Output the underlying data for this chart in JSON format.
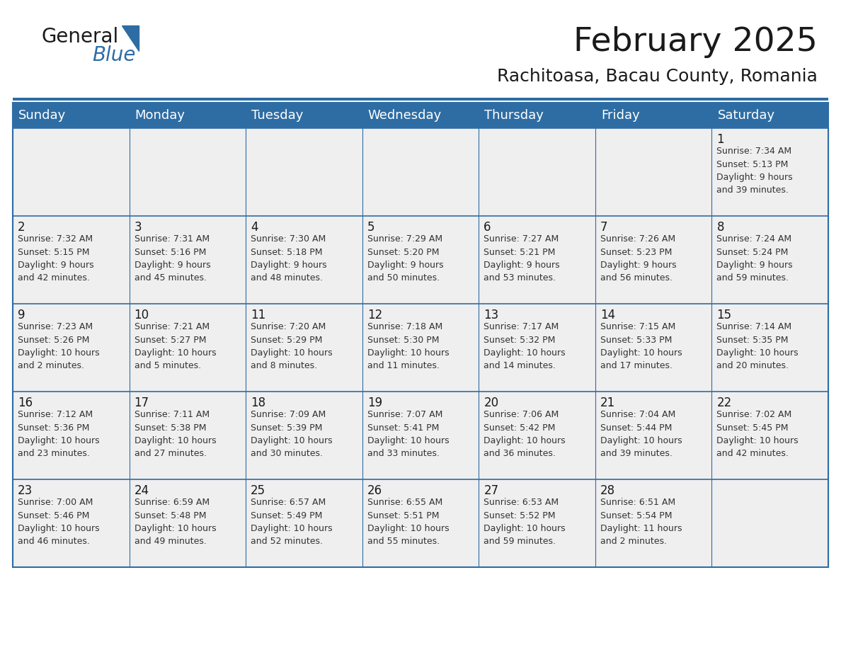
{
  "title": "February 2025",
  "subtitle": "Rachitoasa, Bacau County, Romania",
  "header_bg": "#2E6DA4",
  "header_text_color": "#FFFFFF",
  "cell_bg": "#EFEFEF",
  "border_color": "#2E6DA4",
  "text_color": "#1a1a1a",
  "cell_text_color": "#333333",
  "day_headers": [
    "Sunday",
    "Monday",
    "Tuesday",
    "Wednesday",
    "Thursday",
    "Friday",
    "Saturday"
  ],
  "title_fontsize": 34,
  "subtitle_fontsize": 18,
  "header_fontsize": 13,
  "day_num_fontsize": 12,
  "cell_fontsize": 9,
  "logo_text1_fontsize": 20,
  "logo_text2_fontsize": 20,
  "weeks": [
    [
      {
        "day": "",
        "info": ""
      },
      {
        "day": "",
        "info": ""
      },
      {
        "day": "",
        "info": ""
      },
      {
        "day": "",
        "info": ""
      },
      {
        "day": "",
        "info": ""
      },
      {
        "day": "",
        "info": ""
      },
      {
        "day": "1",
        "info": "Sunrise: 7:34 AM\nSunset: 5:13 PM\nDaylight: 9 hours\nand 39 minutes."
      }
    ],
    [
      {
        "day": "2",
        "info": "Sunrise: 7:32 AM\nSunset: 5:15 PM\nDaylight: 9 hours\nand 42 minutes."
      },
      {
        "day": "3",
        "info": "Sunrise: 7:31 AM\nSunset: 5:16 PM\nDaylight: 9 hours\nand 45 minutes."
      },
      {
        "day": "4",
        "info": "Sunrise: 7:30 AM\nSunset: 5:18 PM\nDaylight: 9 hours\nand 48 minutes."
      },
      {
        "day": "5",
        "info": "Sunrise: 7:29 AM\nSunset: 5:20 PM\nDaylight: 9 hours\nand 50 minutes."
      },
      {
        "day": "6",
        "info": "Sunrise: 7:27 AM\nSunset: 5:21 PM\nDaylight: 9 hours\nand 53 minutes."
      },
      {
        "day": "7",
        "info": "Sunrise: 7:26 AM\nSunset: 5:23 PM\nDaylight: 9 hours\nand 56 minutes."
      },
      {
        "day": "8",
        "info": "Sunrise: 7:24 AM\nSunset: 5:24 PM\nDaylight: 9 hours\nand 59 minutes."
      }
    ],
    [
      {
        "day": "9",
        "info": "Sunrise: 7:23 AM\nSunset: 5:26 PM\nDaylight: 10 hours\nand 2 minutes."
      },
      {
        "day": "10",
        "info": "Sunrise: 7:21 AM\nSunset: 5:27 PM\nDaylight: 10 hours\nand 5 minutes."
      },
      {
        "day": "11",
        "info": "Sunrise: 7:20 AM\nSunset: 5:29 PM\nDaylight: 10 hours\nand 8 minutes."
      },
      {
        "day": "12",
        "info": "Sunrise: 7:18 AM\nSunset: 5:30 PM\nDaylight: 10 hours\nand 11 minutes."
      },
      {
        "day": "13",
        "info": "Sunrise: 7:17 AM\nSunset: 5:32 PM\nDaylight: 10 hours\nand 14 minutes."
      },
      {
        "day": "14",
        "info": "Sunrise: 7:15 AM\nSunset: 5:33 PM\nDaylight: 10 hours\nand 17 minutes."
      },
      {
        "day": "15",
        "info": "Sunrise: 7:14 AM\nSunset: 5:35 PM\nDaylight: 10 hours\nand 20 minutes."
      }
    ],
    [
      {
        "day": "16",
        "info": "Sunrise: 7:12 AM\nSunset: 5:36 PM\nDaylight: 10 hours\nand 23 minutes."
      },
      {
        "day": "17",
        "info": "Sunrise: 7:11 AM\nSunset: 5:38 PM\nDaylight: 10 hours\nand 27 minutes."
      },
      {
        "day": "18",
        "info": "Sunrise: 7:09 AM\nSunset: 5:39 PM\nDaylight: 10 hours\nand 30 minutes."
      },
      {
        "day": "19",
        "info": "Sunrise: 7:07 AM\nSunset: 5:41 PM\nDaylight: 10 hours\nand 33 minutes."
      },
      {
        "day": "20",
        "info": "Sunrise: 7:06 AM\nSunset: 5:42 PM\nDaylight: 10 hours\nand 36 minutes."
      },
      {
        "day": "21",
        "info": "Sunrise: 7:04 AM\nSunset: 5:44 PM\nDaylight: 10 hours\nand 39 minutes."
      },
      {
        "day": "22",
        "info": "Sunrise: 7:02 AM\nSunset: 5:45 PM\nDaylight: 10 hours\nand 42 minutes."
      }
    ],
    [
      {
        "day": "23",
        "info": "Sunrise: 7:00 AM\nSunset: 5:46 PM\nDaylight: 10 hours\nand 46 minutes."
      },
      {
        "day": "24",
        "info": "Sunrise: 6:59 AM\nSunset: 5:48 PM\nDaylight: 10 hours\nand 49 minutes."
      },
      {
        "day": "25",
        "info": "Sunrise: 6:57 AM\nSunset: 5:49 PM\nDaylight: 10 hours\nand 52 minutes."
      },
      {
        "day": "26",
        "info": "Sunrise: 6:55 AM\nSunset: 5:51 PM\nDaylight: 10 hours\nand 55 minutes."
      },
      {
        "day": "27",
        "info": "Sunrise: 6:53 AM\nSunset: 5:52 PM\nDaylight: 10 hours\nand 59 minutes."
      },
      {
        "day": "28",
        "info": "Sunrise: 6:51 AM\nSunset: 5:54 PM\nDaylight: 11 hours\nand 2 minutes."
      },
      {
        "day": "",
        "info": ""
      }
    ]
  ]
}
